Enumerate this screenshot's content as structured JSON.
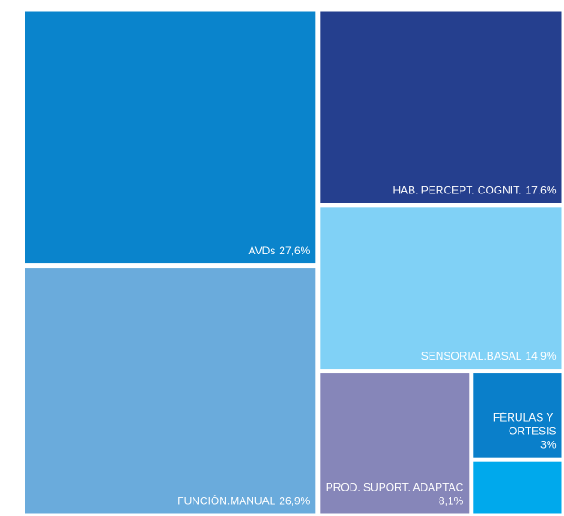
{
  "chart_data": {
    "type": "treemap",
    "categories": [
      "AVDs",
      "FUNCIÓN.MANUAL",
      "HAB. PERCEPT. COGNIT.",
      "SENSORIAL.BASAL",
      "PROD. SUPORT. ADAPTAC",
      "FÉRULAS Y ORTESIS",
      null
    ],
    "values": [
      27.6,
      26.9,
      17.6,
      14.9,
      8.1,
      3,
      1.9
    ],
    "value_labels": [
      "27,6%",
      "26,9%",
      "17,6%",
      "14,9%",
      "8,1%",
      "3%",
      null
    ],
    "colors": [
      "#0a84cc",
      "#6aabdc",
      "#253f8e",
      "#80d1f6",
      "#8686b9",
      "#0a7fca",
      "#00a9ec"
    ]
  }
}
